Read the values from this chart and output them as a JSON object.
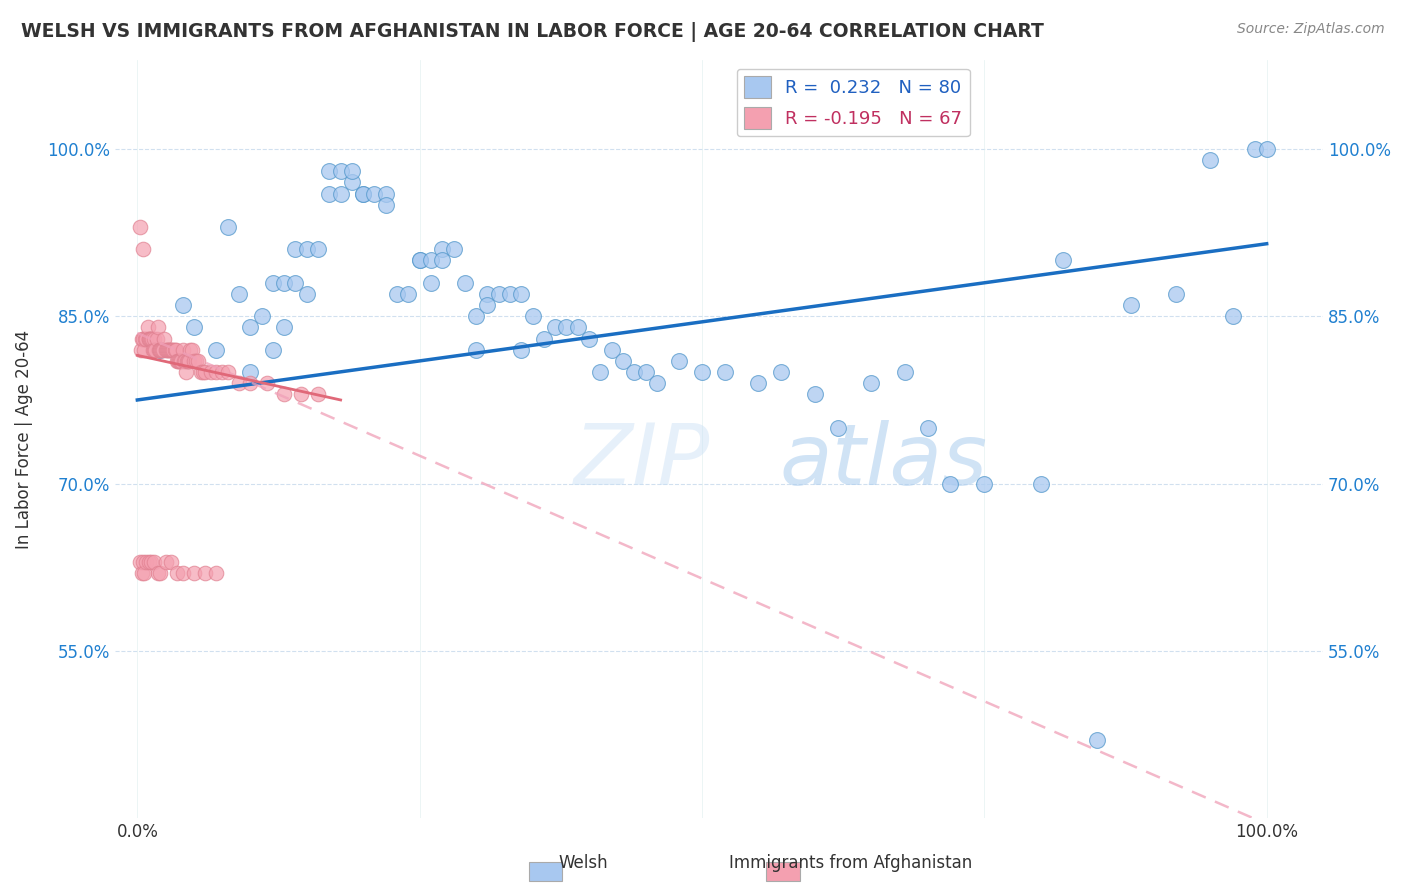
{
  "title": "WELSH VS IMMIGRANTS FROM AFGHANISTAN IN LABOR FORCE | AGE 20-64 CORRELATION CHART",
  "source": "Source: ZipAtlas.com",
  "xlabel": "",
  "ylabel": "In Labor Force | Age 20-64",
  "legend_welsh": "Welsh",
  "legend_afghan": "Immigrants from Afghanistan",
  "R_welsh": 0.232,
  "N_welsh": 80,
  "R_afghan": -0.195,
  "N_afghan": 67,
  "xlim": [
    -0.02,
    1.05
  ],
  "ylim": [
    0.4,
    1.08
  ],
  "yticks": [
    0.55,
    0.7,
    0.85,
    1.0
  ],
  "ytick_labels": [
    "55.0%",
    "70.0%",
    "85.0%",
    "100.0%"
  ],
  "xticks": [
    0.0,
    0.25,
    0.5,
    0.75,
    1.0
  ],
  "xtick_labels": [
    "0.0%",
    "",
    "",
    "",
    "100.0%"
  ],
  "color_welsh": "#a8c8f0",
  "color_afghan": "#f4a0b0",
  "color_welsh_line": "#1a6ec2",
  "color_afghan_line": "#f0a0b8",
  "watermark_zip": "ZIP",
  "watermark_atlas": "atlas",
  "background_color": "#ffffff",
  "welsh_line_x0": 0.0,
  "welsh_line_x1": 1.0,
  "welsh_line_y0": 0.775,
  "welsh_line_y1": 0.915,
  "afghan_line_x0": 0.0,
  "afghan_line_x1": 1.0,
  "afghan_line_y0": 0.835,
  "afghan_line_y1": 0.395,
  "welsh_x": [
    0.02,
    0.04,
    0.05,
    0.07,
    0.08,
    0.09,
    0.1,
    0.1,
    0.11,
    0.12,
    0.12,
    0.13,
    0.13,
    0.14,
    0.14,
    0.15,
    0.15,
    0.16,
    0.17,
    0.17,
    0.18,
    0.18,
    0.19,
    0.19,
    0.2,
    0.2,
    0.21,
    0.22,
    0.22,
    0.23,
    0.24,
    0.25,
    0.25,
    0.26,
    0.26,
    0.27,
    0.27,
    0.28,
    0.29,
    0.3,
    0.3,
    0.31,
    0.31,
    0.32,
    0.33,
    0.34,
    0.34,
    0.35,
    0.36,
    0.37,
    0.38,
    0.39,
    0.4,
    0.41,
    0.42,
    0.43,
    0.44,
    0.45,
    0.46,
    0.48,
    0.5,
    0.52,
    0.55,
    0.57,
    0.6,
    0.62,
    0.65,
    0.68,
    0.7,
    0.72,
    0.75,
    0.8,
    0.82,
    0.85,
    0.88,
    0.92,
    0.95,
    0.97,
    0.99,
    1.0
  ],
  "welsh_y": [
    0.82,
    0.86,
    0.84,
    0.82,
    0.93,
    0.87,
    0.84,
    0.8,
    0.85,
    0.82,
    0.88,
    0.84,
    0.88,
    0.91,
    0.88,
    0.91,
    0.87,
    0.91,
    0.96,
    0.98,
    0.96,
    0.98,
    0.97,
    0.98,
    0.96,
    0.96,
    0.96,
    0.96,
    0.95,
    0.87,
    0.87,
    0.9,
    0.9,
    0.9,
    0.88,
    0.91,
    0.9,
    0.91,
    0.88,
    0.85,
    0.82,
    0.87,
    0.86,
    0.87,
    0.87,
    0.87,
    0.82,
    0.85,
    0.83,
    0.84,
    0.84,
    0.84,
    0.83,
    0.8,
    0.82,
    0.81,
    0.8,
    0.8,
    0.79,
    0.81,
    0.8,
    0.8,
    0.79,
    0.8,
    0.78,
    0.75,
    0.79,
    0.8,
    0.75,
    0.7,
    0.7,
    0.7,
    0.9,
    0.47,
    0.86,
    0.87,
    0.99,
    0.85,
    1.0,
    1.0
  ],
  "afghan_x": [
    0.002,
    0.003,
    0.004,
    0.005,
    0.005,
    0.006,
    0.007,
    0.008,
    0.009,
    0.01,
    0.01,
    0.011,
    0.012,
    0.013,
    0.014,
    0.015,
    0.015,
    0.016,
    0.017,
    0.018,
    0.019,
    0.02,
    0.02,
    0.021,
    0.022,
    0.023,
    0.024,
    0.025,
    0.026,
    0.027,
    0.028,
    0.029,
    0.03,
    0.031,
    0.032,
    0.033,
    0.034,
    0.035,
    0.036,
    0.037,
    0.038,
    0.039,
    0.04,
    0.041,
    0.042,
    0.043,
    0.044,
    0.045,
    0.046,
    0.047,
    0.048,
    0.05,
    0.052,
    0.054,
    0.056,
    0.058,
    0.06,
    0.065,
    0.07,
    0.075,
    0.08,
    0.09,
    0.1,
    0.115,
    0.13,
    0.145,
    0.16
  ],
  "afghan_y": [
    0.93,
    0.82,
    0.83,
    0.91,
    0.83,
    0.82,
    0.83,
    0.83,
    0.84,
    0.83,
    0.83,
    0.83,
    0.83,
    0.83,
    0.82,
    0.83,
    0.82,
    0.82,
    0.83,
    0.84,
    0.82,
    0.82,
    0.82,
    0.82,
    0.82,
    0.82,
    0.83,
    0.82,
    0.82,
    0.82,
    0.82,
    0.82,
    0.82,
    0.82,
    0.82,
    0.82,
    0.82,
    0.81,
    0.81,
    0.81,
    0.81,
    0.81,
    0.82,
    0.81,
    0.81,
    0.8,
    0.81,
    0.81,
    0.81,
    0.82,
    0.82,
    0.81,
    0.81,
    0.81,
    0.8,
    0.8,
    0.8,
    0.8,
    0.8,
    0.8,
    0.8,
    0.79,
    0.79,
    0.79,
    0.78,
    0.78,
    0.78
  ],
  "afghan_extra_low_x": [
    0.002,
    0.004,
    0.005,
    0.006,
    0.008,
    0.01,
    0.012,
    0.015,
    0.018,
    0.02,
    0.025,
    0.03,
    0.035,
    0.04,
    0.05,
    0.06,
    0.07
  ],
  "afghan_extra_low_y": [
    0.63,
    0.62,
    0.63,
    0.62,
    0.63,
    0.63,
    0.63,
    0.63,
    0.62,
    0.62,
    0.63,
    0.63,
    0.62,
    0.62,
    0.62,
    0.62,
    0.62
  ]
}
